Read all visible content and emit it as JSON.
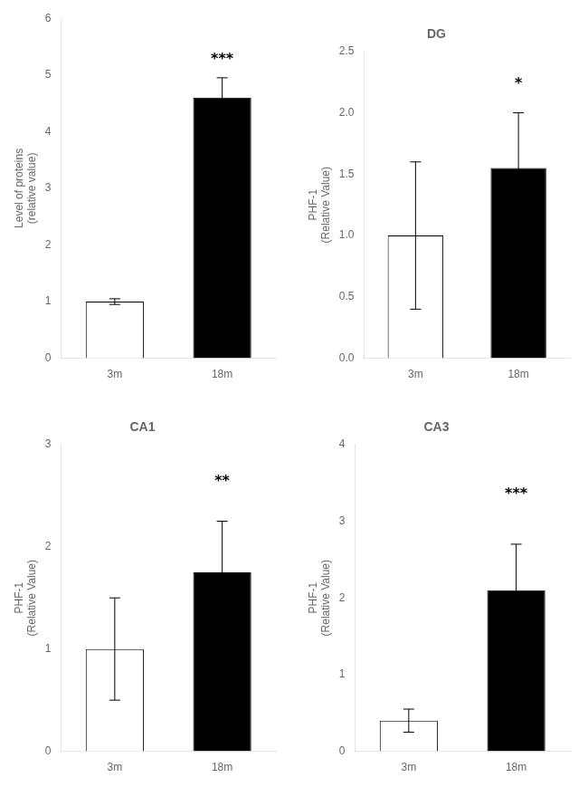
{
  "chart_data": [
    {
      "type": "bar",
      "categories": [
        "3m",
        "18m"
      ],
      "values": [
        1.0,
        4.6
      ],
      "errors": [
        0.05,
        0.35
      ],
      "colors": [
        "white",
        "black"
      ],
      "ylabel": "Level of proteins\n(relative value)",
      "ylim": [
        0,
        6
      ],
      "yticks": [
        0,
        1,
        2,
        3,
        4,
        5,
        6
      ],
      "grid": false,
      "annotations": [
        {
          "text": "***",
          "x": "18m",
          "y": 5.2
        }
      ]
    },
    {
      "type": "bar",
      "title": "DG",
      "categories": [
        "3m",
        "18m"
      ],
      "values": [
        1.0,
        1.55
      ],
      "errors": [
        0.6,
        0.45
      ],
      "colors": [
        "white",
        "black"
      ],
      "ylabel": "PHF-1\n(Relative Value)",
      "ylim": [
        0.0,
        2.5
      ],
      "yticks": [
        {
          "value": 0,
          "label": "0.0"
        },
        0.5,
        {
          "value": 1,
          "label": "1.0"
        },
        1.5,
        {
          "value": 2,
          "label": "2.0"
        },
        2.5
      ],
      "grid": false,
      "annotations": [
        {
          "text": "*",
          "x": "18m",
          "y": 2.2
        }
      ]
    },
    {
      "type": "bar",
      "title": "CA1",
      "categories": [
        "3m",
        "18m"
      ],
      "values": [
        1.0,
        1.75
      ],
      "errors": [
        0.5,
        0.5
      ],
      "colors": [
        "white",
        "black"
      ],
      "ylabel": "PHF-1\n(Relative Value)",
      "ylim": [
        0.0,
        3.0
      ],
      "yticks": [
        0,
        1,
        2,
        3
      ],
      "grid": false,
      "annotations": [
        {
          "text": "**",
          "x": "18m",
          "y": 2.6
        }
      ]
    },
    {
      "type": "bar",
      "title": "CA3",
      "categories": [
        "3m",
        "18m"
      ],
      "values": [
        0.4,
        2.1
      ],
      "errors": [
        0.15,
        0.6
      ],
      "colors": [
        "white",
        "black"
      ],
      "ylabel": "PHF-1\n(Relative Value)",
      "ylim": [
        0.0,
        4.0
      ],
      "yticks": [
        0,
        1,
        2,
        3,
        4
      ],
      "grid": false,
      "annotations": [
        {
          "text": "***",
          "x": "18m",
          "y": 3.3
        }
      ]
    }
  ]
}
